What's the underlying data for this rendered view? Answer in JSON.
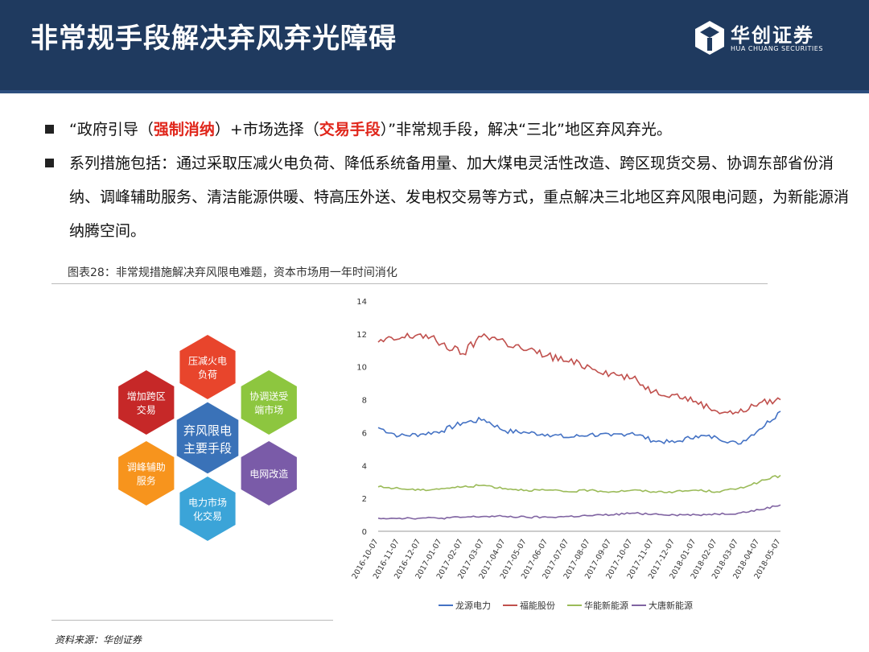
{
  "page": {
    "title": "非常规手段解决弃风弃光障碍",
    "logo_cn": "华创证券",
    "logo_en": "HUA CHUANG SECURITIES"
  },
  "bullets": {
    "b1_open": "“政府引导（",
    "b1_red1": "强制消纳",
    "b1_mid": "）+市场选择（",
    "b1_red2": "交易手段",
    "b1_close": "）”非常规手段，解决“三北”地区弃风弃光。",
    "b2": "系列措施包括：通过采取压减火电负荷、降低系统备用量、加大煤电灵活性改造、跨区现货交易、协调东部省份消纳、调峰辅助服务、清洁能源供暖、特高压外送、发电权交易等方式，重点解决三北地区弃风限电问题，为新能源消纳腾空间。"
  },
  "figure_title": "图表28：非常规措施解决弃风限电难题，资本市场用一年时间消化",
  "source": "资料来源：华创证券",
  "diagram": {
    "center": [
      "弃风限电",
      "主要手段"
    ],
    "nodes": [
      {
        "lines": [
          "压减火电",
          "负荷"
        ],
        "color": "#e8452c"
      },
      {
        "lines": [
          "协调送受",
          "端市场"
        ],
        "color": "#8dc63f"
      },
      {
        "lines": [
          "电网改造"
        ],
        "color": "#7a5ba8"
      },
      {
        "lines": [
          "电力市场",
          "化交易"
        ],
        "color": "#3ba4d8"
      },
      {
        "lines": [
          "调峰辅助",
          "服务"
        ],
        "color": "#f7941d"
      },
      {
        "lines": [
          "增加跨区",
          "交易"
        ],
        "color": "#c62828"
      }
    ],
    "center_color": "#3a72b8"
  },
  "chart_data": {
    "type": "line",
    "ylim": [
      0,
      14
    ],
    "yticks": [
      0,
      2,
      4,
      6,
      8,
      10,
      12,
      14
    ],
    "categories": [
      "2016-10-07",
      "2016-11-07",
      "2016-12-07",
      "2017-01-07",
      "2017-02-07",
      "2017-03-07",
      "2017-04-07",
      "2017-05-07",
      "2017-06-07",
      "2017-07-07",
      "2017-08-07",
      "2017-09-07",
      "2017-10-07",
      "2017-11-07",
      "2017-12-07",
      "2018-01-07",
      "2018-02-07",
      "2018-03-07",
      "2018-04-07",
      "2018-05-07"
    ],
    "series": [
      {
        "name": "龙源电力",
        "color": "#4472c4",
        "values": [
          6.3,
          5.8,
          5.9,
          6.1,
          6.6,
          6.8,
          6.1,
          6.0,
          5.9,
          5.7,
          5.9,
          5.8,
          6.0,
          5.5,
          5.4,
          5.8,
          5.7,
          5.3,
          6.2,
          7.3
        ]
      },
      {
        "name": "福能股份",
        "color": "#c0504d",
        "values": [
          11.5,
          11.7,
          12.0,
          11.4,
          10.8,
          12.0,
          11.5,
          11.0,
          10.7,
          10.3,
          10.0,
          9.6,
          9.3,
          8.5,
          8.3,
          7.9,
          7.3,
          7.2,
          7.8,
          8.0
        ]
      },
      {
        "name": "华能新能源",
        "color": "#9bbb59",
        "values": [
          2.7,
          2.6,
          2.5,
          2.6,
          2.7,
          2.8,
          2.6,
          2.5,
          2.5,
          2.4,
          2.5,
          2.4,
          2.5,
          2.4,
          2.4,
          2.5,
          2.4,
          2.6,
          3.0,
          3.4
        ]
      },
      {
        "name": "大唐新能源",
        "color": "#8064a2",
        "values": [
          0.8,
          0.8,
          0.8,
          0.8,
          0.85,
          0.9,
          0.9,
          0.85,
          0.85,
          0.9,
          0.95,
          1.0,
          1.1,
          1.05,
          1.0,
          1.0,
          1.05,
          1.1,
          1.3,
          1.6
        ]
      }
    ]
  }
}
